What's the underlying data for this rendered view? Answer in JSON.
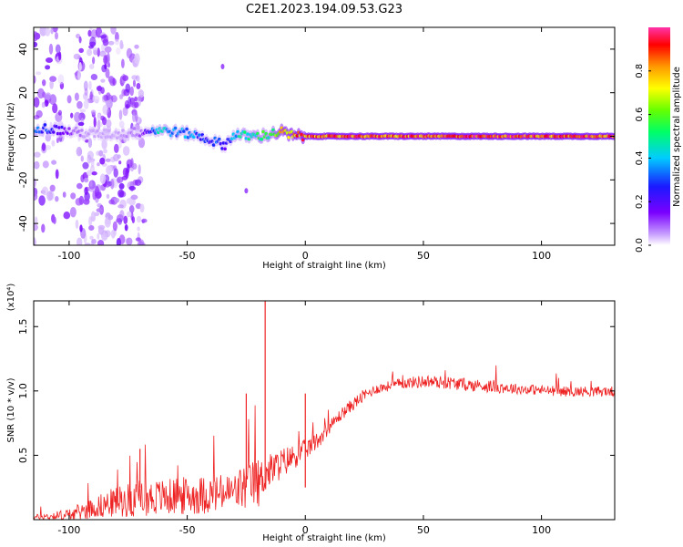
{
  "title": "C2E1.2023.194.09.53.G23",
  "chart_data": [
    {
      "type": "heatmap",
      "panel": "spectrogram",
      "xlabel": "Height of straight line (km)",
      "ylabel": "Frequency (Hz)",
      "xlim": [
        -115,
        131
      ],
      "ylim": [
        -50,
        50
      ],
      "xticks": [
        -100,
        -50,
        0,
        50,
        100
      ],
      "yticks": [
        -40,
        -20,
        0,
        20,
        40
      ],
      "colorbar": {
        "label": "Normalized spectral amplitude",
        "range": [
          0.0,
          1.0
        ],
        "ticks": [
          "0.0",
          "0.2",
          "0.4",
          "0.6",
          "0.8"
        ],
        "colormap": [
          "#ffffff",
          "#c8a0ff",
          "#7a00ff",
          "#1a1aff",
          "#00ccff",
          "#00ff66",
          "#66ff00",
          "#ffff00",
          "#ff9900",
          "#ff0000",
          "#ff33aa"
        ]
      },
      "signal_trace": {
        "x": [
          -113,
          -105,
          -98,
          -90,
          -80,
          -70,
          -62,
          -55,
          -48,
          -42,
          -37,
          -34,
          -30,
          -25,
          -20,
          -15,
          -10,
          -5,
          0,
          20,
          40,
          60,
          80,
          100,
          131
        ],
        "freq": [
          4,
          3,
          2,
          1,
          1,
          2,
          3,
          2,
          1,
          -1,
          -3,
          -4,
          1,
          0,
          0,
          1,
          2,
          0,
          0,
          0,
          0,
          0,
          0,
          0,
          0
        ],
        "amplitude": [
          0.35,
          0.3,
          0.15,
          0.1,
          0.1,
          0.15,
          0.45,
          0.4,
          0.4,
          0.3,
          0.35,
          0.25,
          0.45,
          0.5,
          0.55,
          0.55,
          0.8,
          0.85,
          0.9,
          0.92,
          0.92,
          0.95,
          0.95,
          0.95,
          0.95
        ]
      },
      "noise_region": {
        "x": [
          -115,
          -68
        ],
        "freq": [
          -50,
          50
        ]
      },
      "isolated_points": [
        {
          "x": -25,
          "freq": -25
        },
        {
          "x": -35,
          "freq": 32
        }
      ]
    },
    {
      "type": "line",
      "panel": "snr",
      "xlabel": "Height of straight line (km)",
      "ylabel": "SNR (10 * v/v)",
      "yscale_label": "(x10⁴)",
      "xlim": [
        -115,
        131
      ],
      "ylim": [
        0,
        1.7
      ],
      "xticks": [
        -100,
        -50,
        0,
        50,
        100
      ],
      "yticks": [
        0.5,
        1.0,
        1.5
      ],
      "series": [
        {
          "color": "#ee2222",
          "x": [
            -115,
            -100,
            -90,
            -80,
            -70,
            -60,
            -50,
            -40,
            -30,
            -25,
            -22,
            -20,
            -18,
            -16,
            -10,
            -5,
            0,
            5,
            10,
            15,
            20,
            25,
            30,
            40,
            50,
            60,
            70,
            80,
            90,
            100,
            110,
            120,
            131
          ],
          "values": [
            0.02,
            0.04,
            0.1,
            0.15,
            0.18,
            0.19,
            0.2,
            0.21,
            0.23,
            0.28,
            0.3,
            0.3,
            0.34,
            0.38,
            0.45,
            0.5,
            0.55,
            0.62,
            0.72,
            0.82,
            0.9,
            0.97,
            1.02,
            1.06,
            1.08,
            1.07,
            1.05,
            1.04,
            1.02,
            1.01,
            1.0,
            1.0,
            1.0
          ],
          "noise": [
            0.02,
            0.05,
            0.08,
            0.12,
            0.14,
            0.14,
            0.15,
            0.15,
            0.15,
            0.2,
            0.18,
            0.2,
            0.15,
            0.14,
            0.12,
            0.1,
            0.08,
            0.07,
            0.05,
            0.05,
            0.05,
            0.05,
            0.04,
            0.04,
            0.05,
            0.05,
            0.05,
            0.05,
            0.04,
            0.04,
            0.04,
            0.04,
            0.04
          ],
          "spikes": [
            {
              "x": -25,
              "value": 0.98
            },
            {
              "x": -17,
              "value": 1.7
            },
            {
              "x": -70,
              "value": 0.55
            },
            {
              "x": 0,
              "value": 0.98
            }
          ]
        }
      ]
    }
  ]
}
